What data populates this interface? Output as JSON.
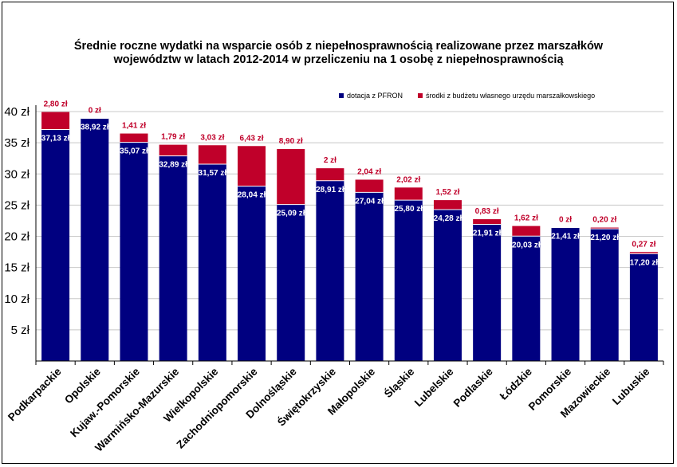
{
  "chart_data": {
    "type": "bar",
    "stacked": true,
    "title_line1": "Średnie roczne wydatki na wsparcie osób z niepełnosprawnością realizowane przez marszałków",
    "title_line2": "województw w latach 2012-2014 w przeliczeniu na 1 osobę z niepełnosprawnością",
    "categories": [
      "Podkarpackie",
      "Opolskie",
      "Kujaw.-Pomorskie",
      "Warmińsko-Mazurskie",
      "Wielkopolskie",
      "Zachodniopomorskie",
      "Dolnośląskie",
      "Świętokrzyskie",
      "Małopolskie",
      "Śląskie",
      "Lubelskie",
      "Podlaskie",
      "Łódzkie",
      "Pomorskie",
      "Mazowieckie",
      "Lubuskie"
    ],
    "series": [
      {
        "name": "dotacja z PFRON",
        "color": "#000080",
        "values": [
          37.13,
          38.92,
          35.07,
          32.89,
          31.57,
          28.04,
          25.09,
          28.91,
          27.04,
          25.8,
          24.28,
          21.91,
          20.03,
          21.41,
          21.2,
          17.2
        ],
        "labels": [
          "37,13 zł",
          "38,92 zł",
          "35,07 zł",
          "32,89 zł",
          "31,57 zł",
          "28,04 zł",
          "25,09 zł",
          "28,91 zł",
          "27,04 zł",
          "25,80 zł",
          "24,28 zł",
          "21,91 zł",
          "20,03 zł",
          "21,41 zł",
          "21,20 zł",
          "17,20 zł"
        ]
      },
      {
        "name": "środki z budżetu własnego urzędu marszałkowskiego",
        "color": "#c0002a",
        "values": [
          2.8,
          0,
          1.41,
          1.79,
          3.03,
          6.43,
          8.9,
          2,
          2.04,
          2.02,
          1.52,
          0.83,
          1.62,
          0,
          0.2,
          0.27
        ],
        "labels": [
          "2,80 zł",
          "0 zł",
          "1,41 zł",
          "1,79 zł",
          "3,03 zł",
          "6,43 zł",
          "8,90 zł",
          "2 zł",
          "2,04 zł",
          "2,02 zł",
          "1,52 zł",
          "0,83 zł",
          "1,62 zł",
          "0 zł",
          "0,20 zł",
          "0,27 zł"
        ]
      }
    ],
    "yticks": [
      {
        "value": 5,
        "label": "5 zł"
      },
      {
        "value": 10,
        "label": "10 zł"
      },
      {
        "value": 15,
        "label": "15 zł"
      },
      {
        "value": 20,
        "label": "20 zł"
      },
      {
        "value": 25,
        "label": "25 zł"
      },
      {
        "value": 30,
        "label": "30 zł"
      },
      {
        "value": 35,
        "label": "35 zł"
      },
      {
        "value": 40,
        "label": "40 zł"
      }
    ],
    "ylim": [
      0,
      40
    ],
    "grid": true,
    "legend_position": "top-right"
  }
}
